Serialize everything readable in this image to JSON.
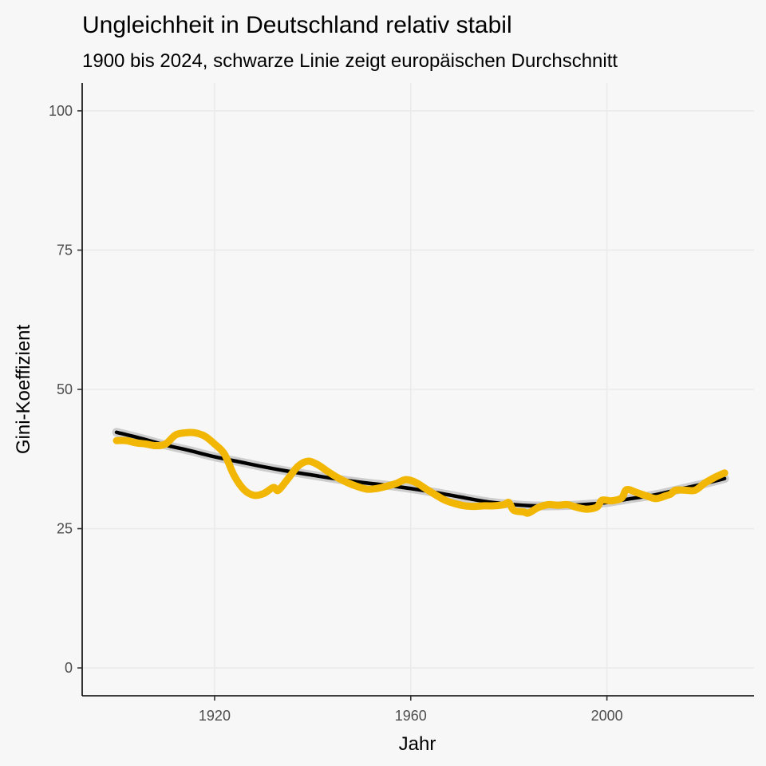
{
  "title": "Ungleichheit in Deutschland relativ stabil",
  "subtitle": "1900 bis 2024, schwarze Linie zeigt europäischen Durchschnitt",
  "colors": {
    "background": "#F7F7F7",
    "grid": "#EBEBEB",
    "germany": "#F2B705",
    "europe": "#000000",
    "europe_band": "#C8C8C8",
    "axis": "#000000"
  },
  "chart_data": {
    "type": "line",
    "title": "Ungleichheit in Deutschland relativ stabil",
    "subtitle": "1900 bis 2024, schwarze Linie zeigt europäischen Durchschnitt",
    "xlabel": "Jahr",
    "ylabel": "Gini-Koeffizient",
    "xlim": [
      1893,
      2030
    ],
    "ylim": [
      -5,
      105
    ],
    "x_ticks": [
      1920,
      1960,
      2000
    ],
    "y_ticks": [
      0,
      25,
      50,
      75,
      100
    ],
    "grid": true,
    "legend": "none",
    "series": [
      {
        "role": "germany",
        "color": "#F2B705",
        "points": [
          [
            1900,
            40.8
          ],
          [
            1902,
            40.8
          ],
          [
            1904,
            40.4
          ],
          [
            1906,
            40.2
          ],
          [
            1908,
            39.9
          ],
          [
            1910,
            40.2
          ],
          [
            1912,
            41.8
          ],
          [
            1914,
            42.2
          ],
          [
            1916,
            42.2
          ],
          [
            1918,
            41.6
          ],
          [
            1920,
            40.2
          ],
          [
            1922,
            38.4
          ],
          [
            1924,
            34.5
          ],
          [
            1926,
            32.0
          ],
          [
            1928,
            31.0
          ],
          [
            1930,
            31.3
          ],
          [
            1932,
            32.4
          ],
          [
            1933,
            31.9
          ],
          [
            1935,
            34.0
          ],
          [
            1937,
            36.2
          ],
          [
            1939,
            37.1
          ],
          [
            1941,
            36.5
          ],
          [
            1943,
            35.3
          ],
          [
            1945,
            34.2
          ],
          [
            1947,
            33.3
          ],
          [
            1949,
            32.6
          ],
          [
            1951,
            32.1
          ],
          [
            1953,
            32.2
          ],
          [
            1955,
            32.6
          ],
          [
            1957,
            33.1
          ],
          [
            1959,
            33.8
          ],
          [
            1961,
            33.3
          ],
          [
            1963,
            32.2
          ],
          [
            1965,
            31.1
          ],
          [
            1967,
            30.1
          ],
          [
            1969,
            29.5
          ],
          [
            1971,
            29.1
          ],
          [
            1973,
            29.0
          ],
          [
            1975,
            29.1
          ],
          [
            1977,
            29.1
          ],
          [
            1979,
            29.3
          ],
          [
            1980,
            29.7
          ],
          [
            1981,
            28.3
          ],
          [
            1983,
            28.0
          ],
          [
            1984,
            27.8
          ],
          [
            1986,
            28.8
          ],
          [
            1988,
            29.3
          ],
          [
            1990,
            29.2
          ],
          [
            1992,
            29.3
          ],
          [
            1994,
            28.8
          ],
          [
            1996,
            28.5
          ],
          [
            1998,
            28.9
          ],
          [
            1999,
            30.1
          ],
          [
            2001,
            30.0
          ],
          [
            2003,
            30.5
          ],
          [
            2004,
            32.0
          ],
          [
            2006,
            31.5
          ],
          [
            2008,
            30.9
          ],
          [
            2010,
            30.4
          ],
          [
            2012,
            30.9
          ],
          [
            2013,
            31.2
          ],
          [
            2014,
            31.9
          ],
          [
            2016,
            31.9
          ],
          [
            2018,
            31.9
          ],
          [
            2020,
            33.2
          ],
          [
            2022,
            34.2
          ],
          [
            2024,
            35.0
          ]
        ]
      },
      {
        "role": "europe",
        "color": "#000000",
        "points": [
          [
            1900,
            42.3
          ],
          [
            1905,
            41.2
          ],
          [
            1910,
            40.0
          ],
          [
            1915,
            39.0
          ],
          [
            1920,
            37.9
          ],
          [
            1925,
            37.0
          ],
          [
            1930,
            36.1
          ],
          [
            1935,
            35.3
          ],
          [
            1940,
            34.6
          ],
          [
            1945,
            33.9
          ],
          [
            1950,
            33.3
          ],
          [
            1955,
            32.8
          ],
          [
            1960,
            32.2
          ],
          [
            1965,
            31.5
          ],
          [
            1970,
            30.7
          ],
          [
            1975,
            29.9
          ],
          [
            1980,
            29.4
          ],
          [
            1985,
            29.1
          ],
          [
            1990,
            29.1
          ],
          [
            1995,
            29.3
          ],
          [
            2000,
            29.7
          ],
          [
            2005,
            30.4
          ],
          [
            2010,
            31.1
          ],
          [
            2015,
            32.1
          ],
          [
            2020,
            33.1
          ],
          [
            2024,
            34.0
          ]
        ]
      }
    ]
  }
}
